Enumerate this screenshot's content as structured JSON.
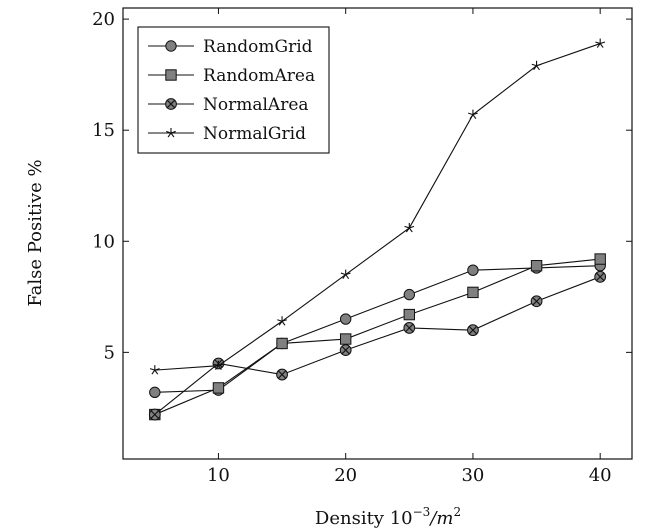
{
  "chart_data": {
    "type": "line",
    "xlabel": "Density 10",
    "xlabel_exponent": "−3",
    "xlabel_unit": "/m",
    "xlabel_unit_exponent": "2",
    "ylabel": "False Positive %",
    "xlim": [
      2.5,
      42.5
    ],
    "ylim": [
      0.2,
      20.5
    ],
    "xticks": [
      10,
      20,
      30,
      40
    ],
    "yticks": [
      5,
      10,
      15,
      20
    ],
    "grid": false,
    "legend_position": "top-left",
    "x": [
      5,
      10,
      15,
      20,
      25,
      30,
      35,
      40
    ],
    "series": [
      {
        "name": "RandomGrid",
        "marker": "circle",
        "color": "#808080",
        "values": [
          3.2,
          3.3,
          5.4,
          6.5,
          7.6,
          8.7,
          8.8,
          8.9
        ]
      },
      {
        "name": "RandomArea",
        "marker": "square",
        "color": "#808080",
        "values": [
          2.2,
          3.4,
          5.4,
          5.6,
          6.7,
          7.7,
          8.9,
          9.2
        ]
      },
      {
        "name": "NormalArea",
        "marker": "otimes",
        "color": "#808080",
        "values": [
          2.2,
          4.5,
          4.0,
          5.1,
          6.1,
          6.0,
          7.3,
          8.4
        ]
      },
      {
        "name": "NormalGrid",
        "marker": "star",
        "color": "#222222",
        "values": [
          4.2,
          4.4,
          6.4,
          8.5,
          10.6,
          15.7,
          17.9,
          18.9
        ]
      }
    ]
  }
}
